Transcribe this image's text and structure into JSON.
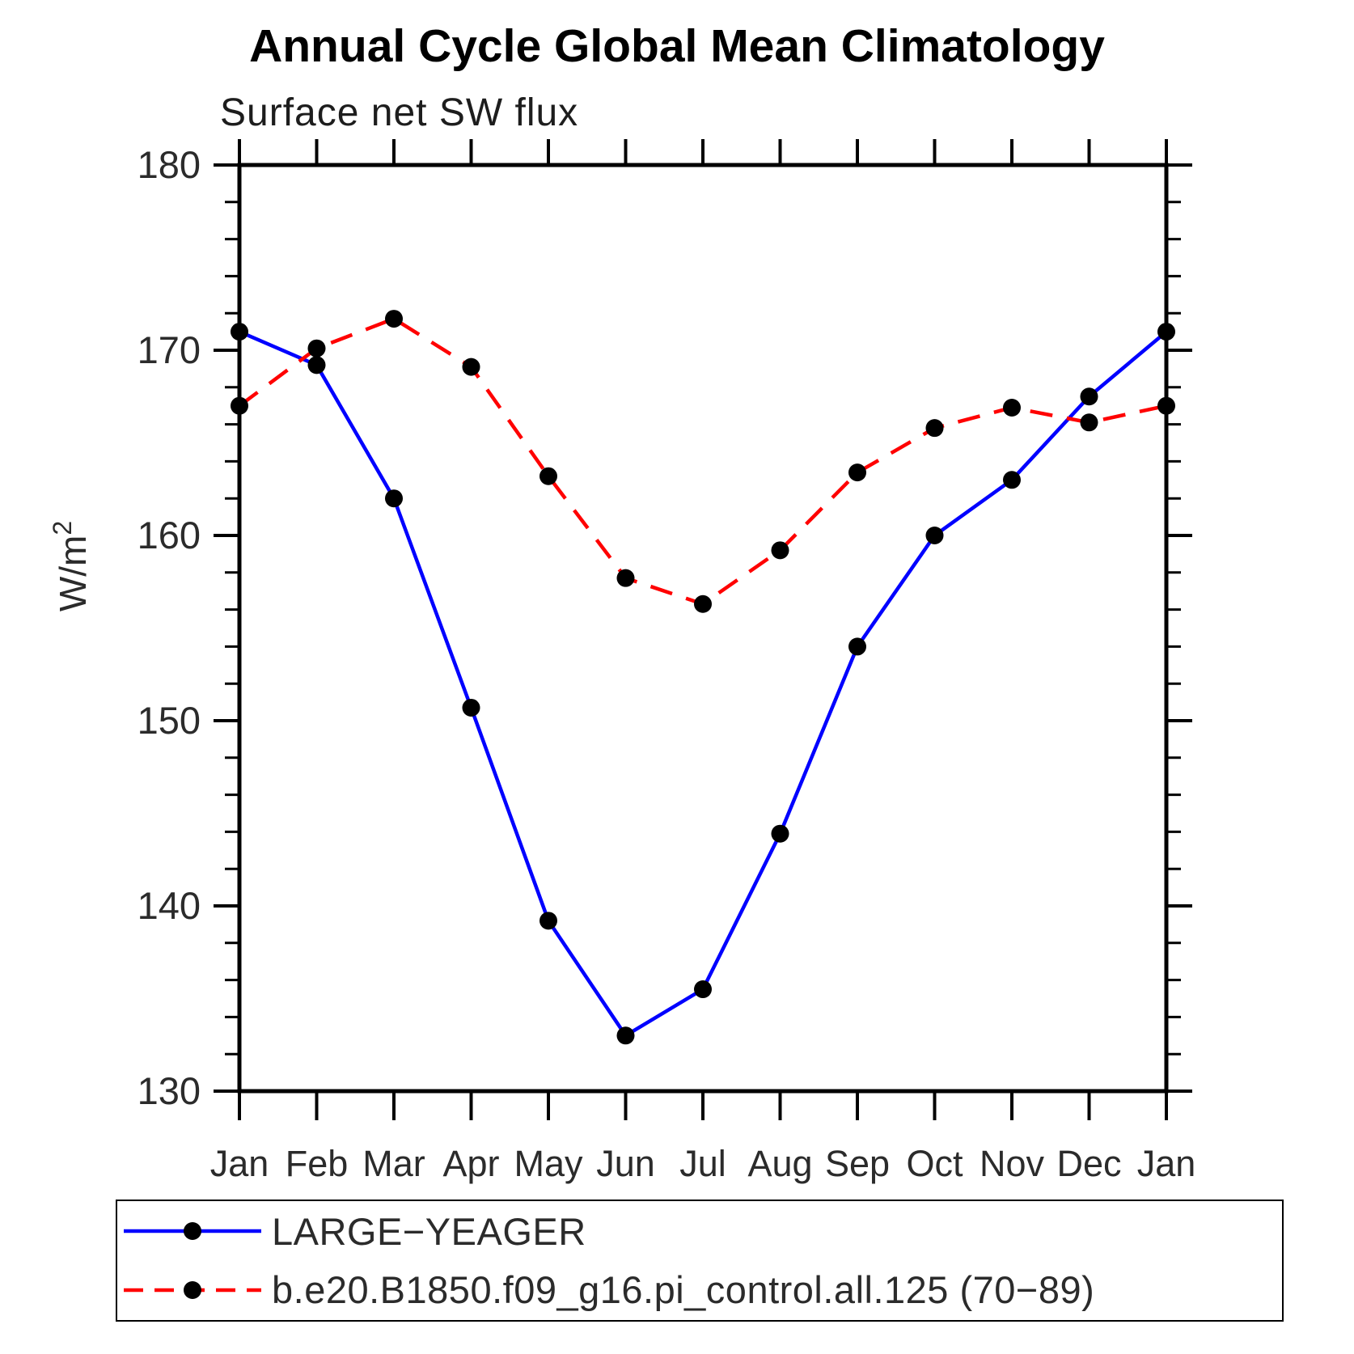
{
  "chart_data": {
    "type": "line",
    "title": "Annual Cycle Global Mean Climatology",
    "subtitle": "Surface net SW flux",
    "ylabel": "W/m²",
    "ylabel_base": "W/m",
    "ylabel_exponent": "2",
    "categories": [
      "Jan",
      "Feb",
      "Mar",
      "Apr",
      "May",
      "Jun",
      "Jul",
      "Aug",
      "Sep",
      "Oct",
      "Nov",
      "Dec",
      "Jan"
    ],
    "ylim": [
      130,
      180
    ],
    "y_major_ticks": [
      130,
      140,
      150,
      160,
      170,
      180
    ],
    "y_minor_step": 2,
    "grid": "off",
    "legend_position": "bottom-left-box",
    "series": [
      {
        "name": "LARGE−YEAGER",
        "color": "#0000ff",
        "style": "solid",
        "marker": "circle",
        "marker_color": "#000000",
        "values": [
          171.0,
          169.2,
          162.0,
          150.7,
          139.2,
          133.0,
          135.5,
          143.9,
          154.0,
          160.0,
          163.0,
          167.5,
          171.0
        ]
      },
      {
        "name": "b.e20.B1850.f09_g16.pi_control.all.125 (70−89)",
        "color": "#ff0000",
        "style": "dashed",
        "marker": "circle",
        "marker_color": "#000000",
        "values": [
          167.0,
          170.1,
          171.7,
          169.1,
          163.2,
          157.7,
          156.3,
          159.2,
          163.4,
          165.8,
          166.9,
          166.1,
          167.0
        ]
      }
    ]
  }
}
